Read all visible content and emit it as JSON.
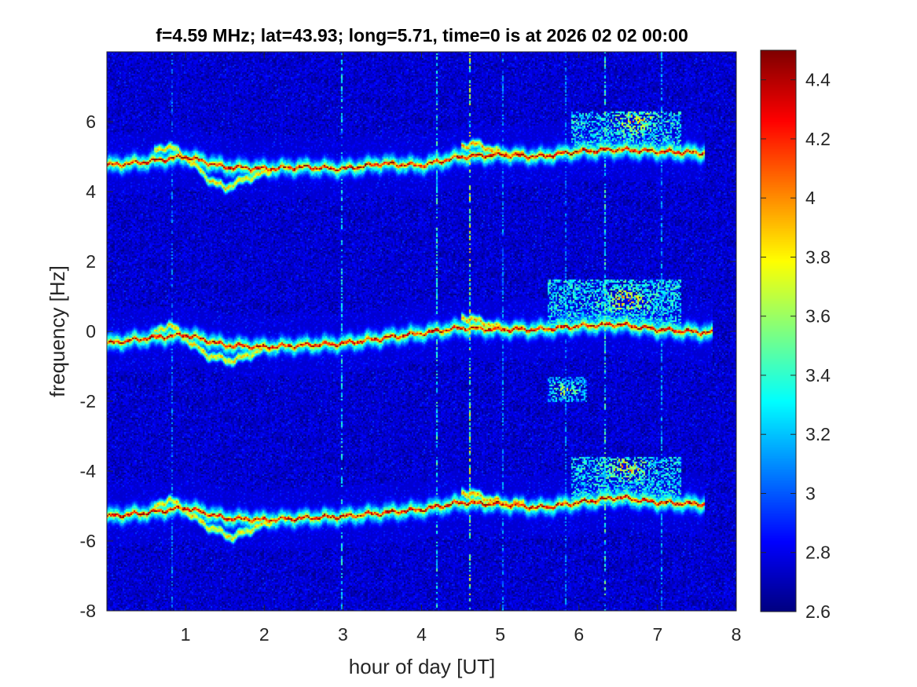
{
  "chart_data": {
    "type": "heatmap",
    "title": "f=4.59 MHz;  lat=43.93; long=5.71, time=0 is at 2026 02 02 00:00",
    "xlabel": "hour of day [UT]",
    "ylabel": "frequency [Hz]",
    "xlim": [
      0,
      8
    ],
    "ylim": [
      -8,
      8
    ],
    "x_ticks": [
      1,
      2,
      3,
      4,
      5,
      6,
      7,
      8
    ],
    "x_tick_labels": [
      "1",
      "2",
      "3",
      "4",
      "5",
      "6",
      "7",
      "8"
    ],
    "y_ticks": [
      -8,
      -6,
      -4,
      -2,
      0,
      2,
      4,
      6
    ],
    "y_tick_labels": [
      "-8",
      "-6",
      "-4",
      "-2",
      "0",
      "2",
      "4",
      "6"
    ],
    "colorbar": {
      "clim": [
        2.6,
        4.5
      ],
      "ticks": [
        2.6,
        2.8,
        3,
        3.2,
        3.4,
        3.6,
        3.8,
        4,
        4.2,
        4.4
      ],
      "tick_labels": [
        "2.6",
        "2.8",
        "3",
        "3.2",
        "3.4",
        "3.6",
        "3.8",
        "4",
        "4.2",
        "4.4"
      ],
      "colormap": "jet"
    },
    "background_level": 2.75,
    "traces": [
      {
        "peak": 4.4,
        "points": [
          [
            0,
            4.75
          ],
          [
            0.5,
            4.85
          ],
          [
            1,
            5.0
          ],
          [
            1.5,
            4.7
          ],
          [
            2,
            4.65
          ],
          [
            2.5,
            4.7
          ],
          [
            3,
            4.65
          ],
          [
            3.5,
            4.8
          ],
          [
            4,
            4.75
          ],
          [
            4.5,
            5.0
          ],
          [
            5,
            5.05
          ],
          [
            5.5,
            5.0
          ],
          [
            6,
            5.15
          ],
          [
            6.5,
            5.2
          ],
          [
            7,
            5.15
          ],
          [
            7.6,
            5.1
          ]
        ]
      },
      {
        "peak": 4.4,
        "points": [
          [
            0,
            -0.35
          ],
          [
            0.5,
            -0.2
          ],
          [
            1,
            -0.1
          ],
          [
            1.5,
            -0.4
          ],
          [
            2,
            -0.45
          ],
          [
            2.5,
            -0.4
          ],
          [
            3,
            -0.35
          ],
          [
            3.5,
            -0.2
          ],
          [
            4,
            -0.05
          ],
          [
            4.5,
            0.1
          ],
          [
            5,
            0.05
          ],
          [
            5.5,
            0.05
          ],
          [
            6,
            0.15
          ],
          [
            6.5,
            0.2
          ],
          [
            7,
            0.05
          ],
          [
            7.7,
            -0.05
          ]
        ]
      },
      {
        "peak": 4.4,
        "points": [
          [
            0,
            -5.3
          ],
          [
            0.5,
            -5.2
          ],
          [
            1,
            -5.05
          ],
          [
            1.5,
            -5.35
          ],
          [
            2,
            -5.4
          ],
          [
            2.5,
            -5.35
          ],
          [
            3,
            -5.3
          ],
          [
            3.5,
            -5.2
          ],
          [
            4,
            -5.1
          ],
          [
            4.5,
            -4.9
          ],
          [
            5,
            -4.95
          ],
          [
            5.5,
            -5.05
          ],
          [
            6,
            -4.9
          ],
          [
            6.5,
            -4.75
          ],
          [
            7,
            -4.9
          ],
          [
            7.6,
            -4.95
          ]
        ]
      }
    ],
    "secondary_traces": [
      {
        "peak": 3.8,
        "points": [
          [
            0.6,
            5.15
          ],
          [
            0.8,
            5.3
          ],
          [
            1.1,
            4.8
          ],
          [
            1.3,
            4.35
          ],
          [
            1.5,
            4.1
          ],
          [
            1.8,
            4.4
          ],
          [
            2.1,
            4.6
          ]
        ]
      },
      {
        "peak": 3.8,
        "points": [
          [
            0.6,
            -0.05
          ],
          [
            0.8,
            0.2
          ],
          [
            1.1,
            -0.4
          ],
          [
            1.3,
            -0.7
          ],
          [
            1.6,
            -0.85
          ],
          [
            1.9,
            -0.6
          ],
          [
            2.1,
            -0.45
          ]
        ]
      },
      {
        "peak": 3.8,
        "points": [
          [
            0.6,
            -5.05
          ],
          [
            0.8,
            -4.8
          ],
          [
            1.1,
            -5.3
          ],
          [
            1.3,
            -5.6
          ],
          [
            1.6,
            -5.9
          ],
          [
            1.9,
            -5.6
          ],
          [
            2.1,
            -5.45
          ]
        ]
      },
      {
        "peak": 3.9,
        "points": [
          [
            4.5,
            5.3
          ],
          [
            4.7,
            5.35
          ],
          [
            5.0,
            5.1
          ],
          [
            5.3,
            5.05
          ]
        ]
      },
      {
        "peak": 3.9,
        "points": [
          [
            4.5,
            0.4
          ],
          [
            4.7,
            0.3
          ],
          [
            5.0,
            0.1
          ],
          [
            5.3,
            0.05
          ]
        ]
      },
      {
        "peak": 3.9,
        "points": [
          [
            4.5,
            -4.6
          ],
          [
            4.7,
            -4.7
          ],
          [
            5.0,
            -4.9
          ],
          [
            5.3,
            -4.95
          ]
        ]
      }
    ],
    "diffuse_patches": [
      {
        "x": [
          5.9,
          7.3
        ],
        "y": [
          5.1,
          6.3
        ],
        "peak": 3.5,
        "hot_spot": [
          6.7,
          6.0
        ]
      },
      {
        "x": [
          5.6,
          7.3
        ],
        "y": [
          0.1,
          1.5
        ],
        "peak": 3.5,
        "hot_spot": [
          6.6,
          0.9
        ]
      },
      {
        "x": [
          5.6,
          6.1
        ],
        "y": [
          -2.0,
          -1.3
        ],
        "peak": 3.2,
        "hot_spot": [
          5.8,
          -1.7
        ]
      },
      {
        "x": [
          5.9,
          7.3
        ],
        "y": [
          -5.0,
          -3.6
        ],
        "peak": 3.5,
        "hot_spot": [
          6.6,
          -3.9
        ]
      }
    ],
    "vertical_streaks": [
      {
        "x": 0.82,
        "peak": 3.2
      },
      {
        "x": 2.97,
        "peak": 3.45
      },
      {
        "x": 4.17,
        "peak": 3.6
      },
      {
        "x": 4.6,
        "peak": 3.9
      },
      {
        "x": 5.02,
        "peak": 3.25
      },
      {
        "x": 5.82,
        "peak": 3.2
      },
      {
        "x": 6.32,
        "peak": 3.6
      },
      {
        "x": 7.04,
        "peak": 3.3
      }
    ]
  }
}
